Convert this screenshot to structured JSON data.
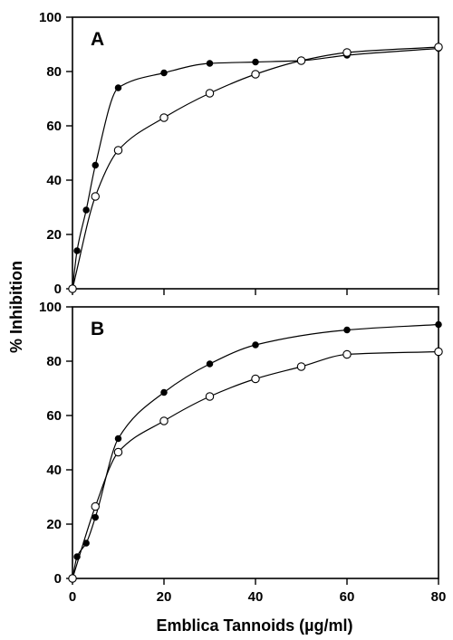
{
  "figure": {
    "ylabel": "% Inhibition",
    "xlabel": "Emblica Tannoids (µg/ml)"
  },
  "chart_data": [
    {
      "type": "line",
      "panel_label": "A",
      "xlim": [
        0,
        80
      ],
      "ylim": [
        0,
        100
      ],
      "x_ticks": [
        0,
        20,
        40,
        60,
        80
      ],
      "y_ticks": [
        0,
        20,
        40,
        60,
        80,
        100
      ],
      "grid": false,
      "series": [
        {
          "marker": "filled-circle",
          "x": [
            0,
            1,
            3,
            5,
            10,
            20,
            30,
            40,
            50,
            60,
            80
          ],
          "y": [
            0,
            14,
            29,
            45.5,
            74,
            79.5,
            83,
            83.5,
            84,
            86,
            88.5
          ]
        },
        {
          "marker": "open-circle",
          "x": [
            0,
            5,
            10,
            20,
            30,
            40,
            50,
            60,
            80
          ],
          "y": [
            0,
            34,
            51,
            63,
            72,
            79,
            84,
            87,
            89
          ]
        }
      ]
    },
    {
      "type": "line",
      "panel_label": "B",
      "xlim": [
        0,
        80
      ],
      "ylim": [
        0,
        100
      ],
      "x_ticks": [
        0,
        20,
        40,
        60,
        80
      ],
      "y_ticks": [
        0,
        20,
        40,
        60,
        80,
        100
      ],
      "grid": false,
      "series": [
        {
          "marker": "filled-circle",
          "x": [
            0,
            1,
            3,
            5,
            10,
            20,
            30,
            40,
            60,
            80
          ],
          "y": [
            0,
            8,
            13,
            22.5,
            51.5,
            68.5,
            79,
            86,
            91.5,
            93.5
          ]
        },
        {
          "marker": "open-circle",
          "x": [
            0,
            5,
            10,
            20,
            30,
            40,
            50,
            60,
            80
          ],
          "y": [
            0,
            26.5,
            46.5,
            58,
            67,
            73.5,
            78,
            82.5,
            83.5
          ]
        }
      ]
    }
  ]
}
